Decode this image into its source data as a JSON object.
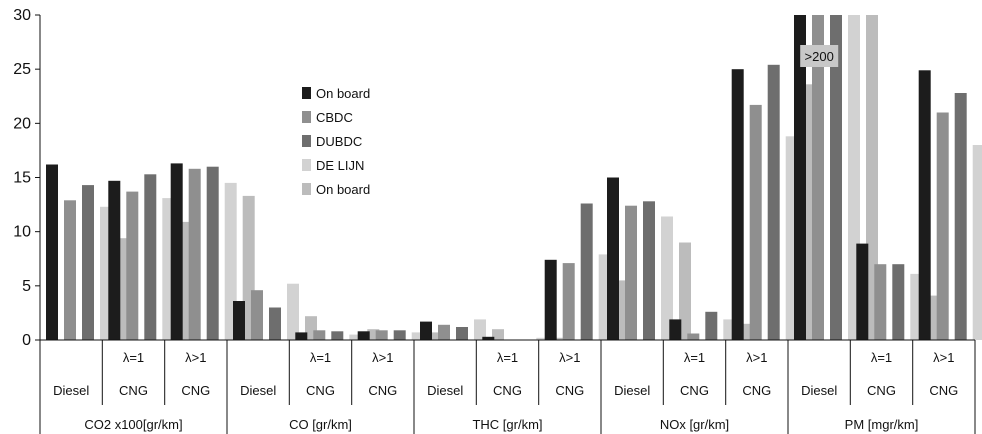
{
  "chart_data": {
    "type": "bar",
    "y_ticks": [
      "0",
      "5",
      "10",
      "15",
      "20",
      "25",
      "30"
    ],
    "ylim": [
      0,
      30
    ],
    "grid": false,
    "legend_position": "center-left-of-plot",
    "series": [
      {
        "name": "On board",
        "color": "#1c1c1c"
      },
      {
        "name": "CBDC",
        "color": "#8f8f8f"
      },
      {
        "name": "DUBDC",
        "color": "#6e6e6e"
      },
      {
        "name": "DE LIJN",
        "color": "#d2d2d2"
      },
      {
        "name": "On board",
        "color": "#bcbcbc"
      }
    ],
    "groups": [
      {
        "pollutant": "CO2 x100[gr/km]",
        "condition": "",
        "fuel": "Diesel",
        "values": [
          16.2,
          12.9,
          14.3,
          12.3,
          9.4
        ]
      },
      {
        "pollutant": "CO2 x100[gr/km]",
        "condition": "λ=1",
        "fuel": "CNG",
        "values": [
          14.7,
          13.7,
          15.3,
          13.1,
          10.9
        ]
      },
      {
        "pollutant": "CO2 x100[gr/km]",
        "condition": "λ>1",
        "fuel": "CNG",
        "values": [
          16.3,
          15.8,
          16.0,
          14.5,
          13.3
        ]
      },
      {
        "pollutant": "CO [gr/km]",
        "condition": "",
        "fuel": "Diesel",
        "values": [
          3.6,
          4.6,
          3.0,
          5.2,
          2.2
        ]
      },
      {
        "pollutant": "CO [gr/km]",
        "condition": "λ=1",
        "fuel": "CNG",
        "values": [
          0.7,
          0.9,
          0.8,
          0.5,
          1.0
        ]
      },
      {
        "pollutant": "CO [gr/km]",
        "condition": "λ>1",
        "fuel": "CNG",
        "values": [
          0.8,
          0.9,
          0.9,
          0.7,
          0.7
        ]
      },
      {
        "pollutant": "THC [gr/km]",
        "condition": "",
        "fuel": "Diesel",
        "values": [
          1.7,
          1.4,
          1.2,
          1.9,
          1.0
        ]
      },
      {
        "pollutant": "THC [gr/km]",
        "condition": "λ=1",
        "fuel": "CNG",
        "values": [
          0.3,
          0.0,
          0.0,
          0.2,
          0.2
        ]
      },
      {
        "pollutant": "THC [gr/km]",
        "condition": "λ>1",
        "fuel": "CNG",
        "values": [
          7.4,
          7.1,
          12.6,
          7.9,
          5.5
        ]
      },
      {
        "pollutant": "NOx [gr/km]",
        "condition": "",
        "fuel": "Diesel",
        "values": [
          15.0,
          12.4,
          12.8,
          11.4,
          9.0
        ]
      },
      {
        "pollutant": "NOx [gr/km]",
        "condition": "λ=1",
        "fuel": "CNG",
        "values": [
          1.9,
          0.6,
          2.6,
          1.9,
          1.5
        ]
      },
      {
        "pollutant": "NOx [gr/km]",
        "condition": "λ>1",
        "fuel": "CNG",
        "values": [
          25.0,
          21.7,
          25.4,
          18.8,
          23.6
        ]
      },
      {
        "pollutant": "PM [mgr/km]",
        "condition": "",
        "fuel": "Diesel",
        "values": [
          30,
          30,
          30,
          30,
          30
        ]
      },
      {
        "pollutant": "PM [mgr/km]",
        "condition": "λ=1",
        "fuel": "CNG",
        "values": [
          8.9,
          7.0,
          7.0,
          6.1,
          4.1
        ]
      },
      {
        "pollutant": "PM [mgr/km]",
        "condition": "λ>1",
        "fuel": "CNG",
        "values": [
          24.9,
          21.0,
          22.8,
          18.0,
          14.9
        ]
      }
    ],
    "pollutants": [
      "CO2 x100[gr/km]",
      "CO [gr/km]",
      "THC [gr/km]",
      "NOx [gr/km]",
      "PM [mgr/km]"
    ],
    "annotations": [
      {
        "group_index": 12,
        "text": ">200"
      }
    ]
  }
}
